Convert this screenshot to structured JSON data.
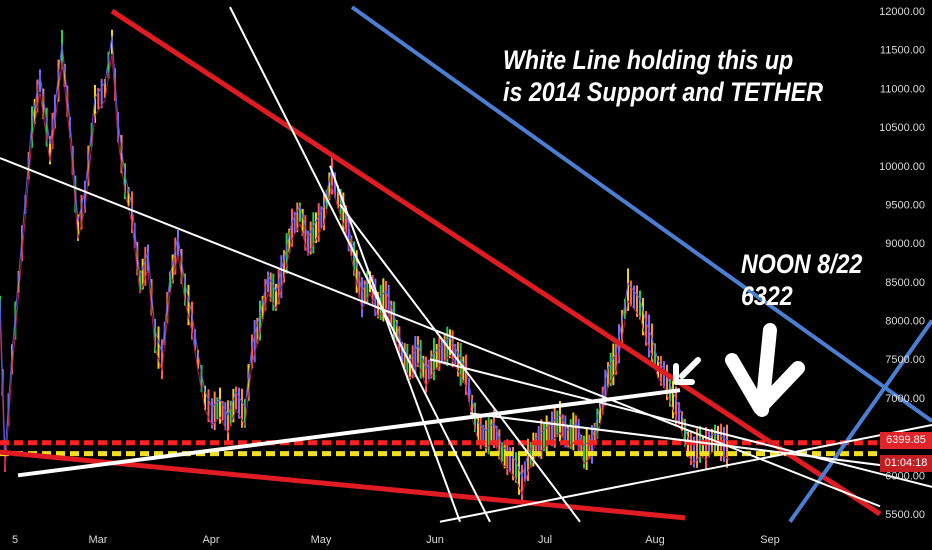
{
  "chart_data": {
    "type": "candlestick",
    "title": "",
    "x_tick_labels": [
      "5",
      "Mar",
      "Apr",
      "May",
      "Jun",
      "Jul",
      "Aug",
      "Sep"
    ],
    "y_tick_labels": [
      "12000.00",
      "11500.00",
      "11000.00",
      "10500.00",
      "10000.00",
      "9500.00",
      "9000.00",
      "8500.00",
      "8000.00",
      "7500.00",
      "7000.00",
      "6500.00",
      "6000.00",
      "5500.00"
    ],
    "ylim": [
      5400,
      12050
    ],
    "grid": false,
    "series": [
      {
        "kind": "price",
        "points": [
          [
            0,
            8200
          ],
          [
            5,
            6200
          ],
          [
            12,
            7500
          ],
          [
            22,
            9000
          ],
          [
            32,
            10500
          ],
          [
            40,
            11100
          ],
          [
            50,
            10200
          ],
          [
            55,
            10700
          ],
          [
            62,
            11500
          ],
          [
            70,
            10500
          ],
          [
            78,
            9200
          ],
          [
            85,
            9600
          ],
          [
            95,
            10800
          ],
          [
            105,
            11000
          ],
          [
            112,
            11600
          ],
          [
            118,
            10500
          ],
          [
            125,
            9800
          ],
          [
            132,
            9400
          ],
          [
            140,
            8500
          ],
          [
            148,
            8800
          ],
          [
            155,
            7800
          ],
          [
            162,
            7500
          ],
          [
            170,
            8500
          ],
          [
            178,
            9000
          ],
          [
            185,
            8400
          ],
          [
            192,
            8000
          ],
          [
            198,
            7500
          ],
          [
            205,
            7000
          ],
          [
            212,
            6800
          ],
          [
            220,
            6900
          ],
          [
            228,
            6700
          ],
          [
            236,
            7000
          ],
          [
            245,
            6800
          ],
          [
            252,
            7600
          ],
          [
            260,
            8000
          ],
          [
            268,
            8500
          ],
          [
            276,
            8300
          ],
          [
            284,
            8700
          ],
          [
            292,
            9200
          ],
          [
            300,
            9400
          ],
          [
            308,
            9000
          ],
          [
            316,
            9200
          ],
          [
            324,
            9400
          ],
          [
            332,
            9900
          ],
          [
            338,
            9600
          ],
          [
            346,
            9300
          ],
          [
            354,
            8800
          ],
          [
            362,
            8300
          ],
          [
            370,
            8500
          ],
          [
            378,
            8200
          ],
          [
            386,
            8300
          ],
          [
            394,
            8000
          ],
          [
            402,
            7600
          ],
          [
            410,
            7400
          ],
          [
            418,
            7600
          ],
          [
            426,
            7300
          ],
          [
            434,
            7500
          ],
          [
            442,
            7600
          ],
          [
            450,
            7700
          ],
          [
            458,
            7500
          ],
          [
            466,
            7300
          ],
          [
            472,
            6900
          ],
          [
            478,
            6600
          ],
          [
            486,
            6500
          ],
          [
            494,
            6600
          ],
          [
            502,
            6300
          ],
          [
            510,
            6200
          ],
          [
            516,
            6100
          ],
          [
            522,
            5900
          ],
          [
            528,
            6200
          ],
          [
            536,
            6400
          ],
          [
            544,
            6500
          ],
          [
            552,
            6600
          ],
          [
            560,
            6700
          ],
          [
            568,
            6500
          ],
          [
            576,
            6600
          ],
          [
            584,
            6300
          ],
          [
            592,
            6400
          ],
          [
            600,
            6800
          ],
          [
            608,
            7300
          ],
          [
            616,
            7500
          ],
          [
            622,
            7900
          ],
          [
            628,
            8400
          ],
          [
            634,
            8300
          ],
          [
            640,
            8200
          ],
          [
            646,
            7900
          ],
          [
            652,
            7700
          ],
          [
            658,
            7400
          ],
          [
            664,
            7300
          ],
          [
            670,
            7100
          ],
          [
            676,
            6900
          ],
          [
            682,
            6700
          ],
          [
            688,
            6400
          ],
          [
            694,
            6300
          ],
          [
            700,
            6400
          ],
          [
            706,
            6350
          ],
          [
            712,
            6450
          ],
          [
            718,
            6450
          ],
          [
            724,
            6400
          ],
          [
            730,
            6350
          ]
        ]
      },
      {
        "kind": "red_trendline",
        "from": [
          112,
          12000
        ],
        "to": [
          880,
          5500
        ]
      },
      {
        "kind": "red_trendline",
        "from": [
          0,
          6300
        ],
        "to": [
          685,
          5450
        ]
      },
      {
        "kind": "blue_trendline",
        "from": [
          352,
          12050
        ],
        "to": [
          932,
          6700
        ]
      },
      {
        "kind": "blue_trendline",
        "from": [
          790,
          5400
        ],
        "to": [
          932,
          8000
        ]
      },
      {
        "kind": "white_trendline",
        "from": [
          0,
          10100
        ],
        "to": [
          880,
          5600
        ]
      },
      {
        "kind": "white_trendline",
        "from": [
          230,
          12050
        ],
        "to": [
          490,
          5400
        ]
      },
      {
        "kind": "white_trendline",
        "from": [
          18,
          6000
        ],
        "to": [
          680,
          7100
        ]
      },
      {
        "kind": "white_trendline",
        "from": [
          330,
          10000
        ],
        "to": [
          460,
          5400
        ]
      },
      {
        "kind": "white_trendline",
        "from": [
          340,
          9500
        ],
        "to": [
          580,
          5400
        ]
      },
      {
        "kind": "white_trendline",
        "from": [
          430,
          7500
        ],
        "to": [
          932,
          5850
        ]
      },
      {
        "kind": "white_trendline",
        "from": [
          440,
          5400
        ],
        "to": [
          932,
          6650
        ]
      },
      {
        "kind": "white_trendline",
        "from": [
          470,
          6800
        ],
        "to": [
          900,
          6100
        ]
      },
      {
        "kind": "red_dashed_level",
        "value": 6420
      },
      {
        "kind": "yellow_dashed_level",
        "value": 6280
      }
    ],
    "annotations": [
      "White Line holding this up",
      "is 2014 Support and TETHER",
      "NOON 8/22",
      "6322"
    ],
    "price_tag": "6399.85",
    "timer_tag": "01:04:18"
  },
  "colors": {
    "background": "#000000",
    "red_line": "#e01b22",
    "blue_line": "#4a7fd4",
    "white_line": "#ffffff",
    "yellow_dash": "#f0e020",
    "red_dash": "#ff2020",
    "axis_text": "#d8d8d8"
  }
}
